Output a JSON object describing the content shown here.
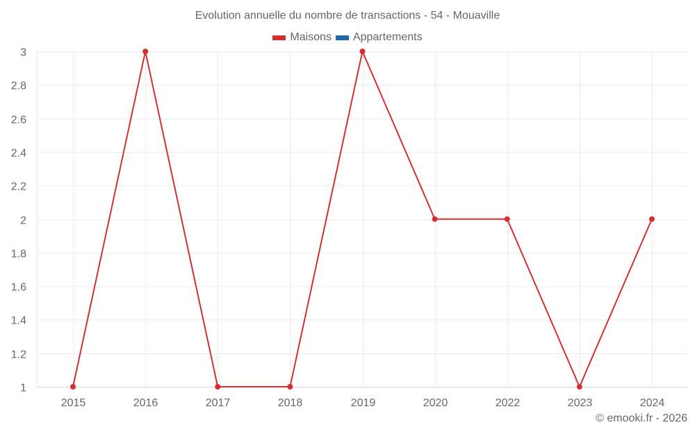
{
  "chart": {
    "title": "Evolution annuelle du nombre de transactions - 54 - Mouaville",
    "credit": "© emooki.fr - 2026",
    "legend": [
      {
        "label": "Maisons",
        "color": "#D32F2F"
      },
      {
        "label": "Appartements",
        "color": "#1F6AA5"
      }
    ]
  },
  "chart_data": {
    "type": "line",
    "title": "Evolution annuelle du nombre de transactions - 54 - Mouaville",
    "xlabel": "",
    "ylabel": "",
    "categories": [
      "2015",
      "2016",
      "2017",
      "2018",
      "2019",
      "2020",
      "2022",
      "2023",
      "2024"
    ],
    "series": [
      {
        "name": "Maisons",
        "color": "#D32F2F",
        "values": [
          1,
          3,
          1,
          1,
          3,
          2,
          2,
          1,
          2
        ]
      },
      {
        "name": "Appartements",
        "color": "#1F6AA5",
        "values": []
      }
    ],
    "ylim": [
      1,
      3
    ],
    "yticks": [
      "1",
      "1.2",
      "1.4",
      "1.6",
      "1.8",
      "2",
      "2.2",
      "2.4",
      "2.6",
      "2.8",
      "3"
    ],
    "grid": true,
    "legend_position": "top"
  }
}
